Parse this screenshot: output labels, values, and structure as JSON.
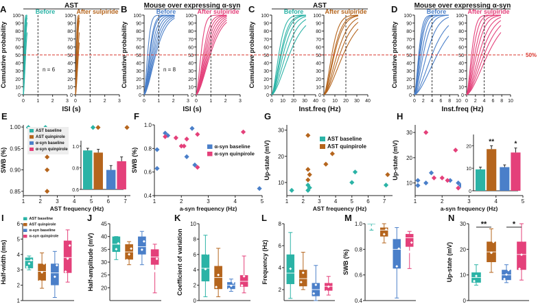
{
  "figure_title": "Multi-panel figure: cumulative probability, scatter and box plots",
  "colors": {
    "ast_base": "#2bb3a6",
    "ast_quin": "#b5651d",
    "syn_base": "#4a7fc9",
    "syn_quin": "#e4407a",
    "ref": "#d9342b"
  },
  "chart_data": [
    {
      "panel": "A",
      "type": "line",
      "group_title": "AST",
      "subtitles": [
        "Before",
        "After sulpiride"
      ],
      "xlabel": "ISI (s)",
      "ylabel": "Cumulative probability",
      "xlim": [
        0,
        3
      ],
      "ylim": [
        0,
        100
      ],
      "xticks": [
        "0",
        "1",
        "2",
        "3"
      ],
      "yticks": [
        "0",
        "10",
        "20",
        "30",
        "40",
        "50",
        "60",
        "70",
        "80",
        "90",
        "100"
      ],
      "n_label": "n = 6",
      "vline": 1,
      "ref_line": 50
    },
    {
      "panel": "B",
      "type": "line",
      "group_title": "Mouse over expressing α-syn",
      "subtitles": [
        "Before",
        "After sulpiride"
      ],
      "xlabel": "ISI (s)",
      "ylabel": "Cumulative probability",
      "xlim": [
        0,
        3
      ],
      "ylim": [
        0,
        100
      ],
      "xticks": [
        "0",
        "1",
        "2",
        "3"
      ],
      "yticks": [
        "0",
        "10",
        "20",
        "30",
        "40",
        "50",
        "60",
        "70",
        "80",
        "90",
        "100"
      ],
      "n_label": "n = 8",
      "vline": 1,
      "ref_line": 50
    },
    {
      "panel": "C",
      "type": "line",
      "group_title": "AST",
      "subtitles": [
        "Before",
        "After sulpiride"
      ],
      "xlabel": "Inst.freq (Hz)",
      "ylabel": "Cumulative probability",
      "xlim": [
        0,
        40
      ],
      "ylim": [
        0,
        100
      ],
      "xticks": [
        "0",
        "10",
        "20",
        "30",
        "40"
      ],
      "yticks": [
        "0",
        "10",
        "20",
        "30",
        "40",
        "50",
        "60",
        "70",
        "80",
        "90",
        "100"
      ],
      "vline": 20,
      "ref_line": 50
    },
    {
      "panel": "D",
      "type": "line",
      "group_title": "Mouse over expressing α-syn",
      "subtitles": [
        "Before",
        "After sulpiride"
      ],
      "xlabel": "Inst.freq (Hz)",
      "ylabel": "Cumulative probability",
      "xlim": [
        0,
        10
      ],
      "ylim": [
        0,
        100
      ],
      "xticks": [
        "0",
        "2",
        "4",
        "6",
        "8",
        "10"
      ],
      "yticks": [
        "0",
        "10",
        "20",
        "30",
        "40",
        "50",
        "60",
        "70",
        "80",
        "90",
        "100"
      ],
      "vline": 4,
      "ref_line": 50,
      "ref_label": "50%"
    },
    {
      "panel": "E",
      "type": "scatter",
      "xlabel": "AST frequency (Hz)",
      "ylabel": "SWB (%)",
      "xlim": [
        1,
        7.3
      ],
      "ylim": [
        0.84,
        1.005
      ],
      "xticks": [
        "1",
        "2",
        "3",
        "4",
        "5",
        "6",
        "7"
      ],
      "yticks": [
        "0.85",
        "0.90",
        "0.95",
        "1.00"
      ],
      "legend": [
        "AST baseline",
        "AST quinpirole",
        "α-syn baseline",
        "α-syn quinpirole"
      ],
      "series": [
        {
          "name": "AST baseline",
          "points": [
            [
              1.3,
              0.999
            ],
            [
              2.3,
              0.999
            ],
            [
              5.1,
              0.999
            ]
          ]
        },
        {
          "name": "AST quinpirole",
          "points": [
            [
              2.3,
              0.97
            ],
            [
              2.4,
              0.93
            ],
            [
              2.4,
              0.9
            ],
            [
              2.4,
              0.85
            ],
            [
              3.7,
              0.966
            ],
            [
              5.4,
              0.999
            ],
            [
              7.1,
              0.999
            ]
          ]
        }
      ],
      "inset": {
        "type": "bar",
        "ylim": [
          0.6,
          1.05
        ],
        "yticks": [
          "0.6",
          "0.8",
          "1.0"
        ],
        "values": [
          0.96,
          0.94,
          0.78,
          0.86
        ],
        "errors": [
          0.02,
          0.03,
          0.04,
          0.04
        ]
      }
    },
    {
      "panel": "F",
      "type": "scatter",
      "xlabel": "a-syn frequency (Hz)",
      "ylabel": "SWB (%)",
      "xlim": [
        1,
        5
      ],
      "ylim": [
        0.4,
        1.0
      ],
      "xticks": [
        "1",
        "2",
        "3",
        "4",
        "5"
      ],
      "yticks": [
        "0.4",
        "0.6",
        "0.8",
        "1.0"
      ],
      "legend": [
        "α-syn baseline",
        "α-syn quinpirole"
      ],
      "series": [
        {
          "name": "α-syn baseline",
          "points": [
            [
              1.1,
              0.63
            ],
            [
              1.1,
              0.79
            ],
            [
              1.4,
              0.93
            ],
            [
              1.5,
              0.91
            ],
            [
              2.4,
              0.97
            ],
            [
              2.5,
              0.66
            ],
            [
              2.2,
              0.73
            ],
            [
              4.9,
              0.46
            ]
          ]
        },
        {
          "name": "α-syn quinpirole",
          "points": [
            [
              1.4,
              0.9
            ],
            [
              1.8,
              0.89
            ],
            [
              2.0,
              0.82
            ],
            [
              2.1,
              0.82
            ],
            [
              2.2,
              0.88
            ],
            [
              2.6,
              0.92
            ],
            [
              2.6,
              0.64
            ],
            [
              4.3,
              0.94
            ]
          ]
        }
      ]
    },
    {
      "panel": "G",
      "type": "scatter",
      "xlabel": "AST frequency (Hz)",
      "ylabel": "Up-state (mV)",
      "xlim": [
        1,
        7.5
      ],
      "ylim": [
        5,
        32
      ],
      "xticks": [
        "1",
        "2",
        "3",
        "4",
        "5",
        "6",
        "7"
      ],
      "yticks": [
        "10",
        "20",
        "30"
      ],
      "legend": [
        "AST baseline",
        "AST quinpirole"
      ],
      "series": [
        {
          "name": "AST baseline",
          "points": [
            [
              1.3,
              7
            ],
            [
              2.3,
              7
            ],
            [
              2.4,
              8
            ],
            [
              2.3,
              9
            ],
            [
              5.0,
              10
            ],
            [
              5.2,
              14
            ],
            [
              7.1,
              9
            ]
          ]
        },
        {
          "name": "AST quinpirole",
          "points": [
            [
              2.3,
              28
            ],
            [
              2.3,
              15
            ],
            [
              2.4,
              13
            ],
            [
              2.3,
              11
            ],
            [
              3.4,
              17
            ],
            [
              3.8,
              21
            ],
            [
              7.2,
              13
            ]
          ]
        }
      ]
    },
    {
      "panel": "H",
      "type": "scatter",
      "xlabel": "a-syn frequency (Hz)",
      "ylabel": "Up-state (mV)",
      "xlim": [
        1,
        5
      ],
      "ylim": [
        5,
        33
      ],
      "xticks": [
        "1",
        "2",
        "3",
        "4",
        "5"
      ],
      "yticks": [
        "10",
        "20",
        "30"
      ],
      "series": [
        {
          "name": "α-syn baseline",
          "points": [
            [
              1.1,
              9
            ],
            [
              1.1,
              11
            ],
            [
              1.4,
              10
            ],
            [
              1.6,
              14
            ],
            [
              2.3,
              11
            ],
            [
              2.6,
              10
            ],
            [
              2.7,
              9
            ],
            [
              2.8,
              7
            ],
            [
              4.8,
              7
            ]
          ]
        },
        {
          "name": "α-syn quinpirole",
          "points": [
            [
              1.4,
              30
            ],
            [
              1.7,
              12
            ],
            [
              2.0,
              12
            ],
            [
              2.2,
              11
            ],
            [
              2.5,
              23
            ],
            [
              2.6,
              8
            ],
            [
              4.3,
              21
            ]
          ]
        }
      ],
      "inset": {
        "type": "bar",
        "ylim": [
          0,
          25
        ],
        "yticks": [
          "0",
          "10",
          "20"
        ],
        "values": [
          9.5,
          18.5,
          10.5,
          17
        ],
        "errors": [
          1,
          1.5,
          1,
          2
        ],
        "sig": [
          "**",
          "*"
        ]
      }
    },
    {
      "panel": "I",
      "type": "box",
      "xlabel": "",
      "ylabel": "Half-width (ms)",
      "ylim": [
        1,
        6
      ],
      "yticks": [
        "1",
        "2",
        "3",
        "4",
        "5",
        "6"
      ],
      "legend": [
        "AST baseline",
        "AST quinpirole",
        "α-syn baseline",
        "α-syn quinpirole"
      ],
      "boxes": [
        {
          "q1": 3.1,
          "med": 3.6,
          "q3": 3.8,
          "lo": 3.0,
          "hi": 3.9
        },
        {
          "q1": 2.3,
          "med": 2.9,
          "q3": 3.4,
          "lo": 1.8,
          "hi": 4.1
        },
        {
          "q1": 2.0,
          "med": 2.8,
          "q3": 3.4,
          "lo": 1.2,
          "hi": 4.2
        },
        {
          "q1": 2.8,
          "med": 3.8,
          "q3": 4.9,
          "lo": 2.2,
          "hi": 5.6
        }
      ]
    },
    {
      "panel": "J",
      "type": "box",
      "ylabel": "Half-amplitude (mV)",
      "ylim": [
        15,
        45
      ],
      "yticks": [
        "20",
        "25",
        "30",
        "35",
        "40",
        "45"
      ],
      "boxes": [
        {
          "q1": 34,
          "med": 37,
          "q3": 40,
          "lo": 31,
          "hi": 40
        },
        {
          "q1": 31,
          "med": 34,
          "q3": 37,
          "lo": 29,
          "hi": 38
        },
        {
          "q1": 33,
          "med": 36,
          "q3": 40,
          "lo": 29,
          "hi": 42
        },
        {
          "q1": 29,
          "med": 32,
          "q3": 35,
          "lo": 18,
          "hi": 37
        }
      ]
    },
    {
      "panel": "K",
      "type": "box",
      "ylabel": "Coefficient of variation",
      "ylim": [
        0,
        10
      ],
      "yticks": [
        "0",
        "2",
        "4",
        "6",
        "8",
        "10"
      ],
      "boxes": [
        {
          "q1": 2.5,
          "med": 4.2,
          "q3": 6.0,
          "lo": 0.5,
          "hi": 8.5
        },
        {
          "q1": 1.5,
          "med": 3.0,
          "q3": 4.5,
          "lo": 0.5,
          "hi": 6.8
        },
        {
          "q1": 1.5,
          "med": 2.0,
          "q3": 2.4,
          "lo": 1.2,
          "hi": 2.8
        },
        {
          "q1": 1.8,
          "med": 2.5,
          "q3": 3.3,
          "lo": 1.0,
          "hi": 5.8
        }
      ]
    },
    {
      "panel": "L",
      "type": "box",
      "ylabel": "Frequency (Hz)",
      "ylim": [
        1,
        8
      ],
      "yticks": [
        "2",
        "4",
        "6",
        "8"
      ],
      "boxes": [
        {
          "q1": 2.5,
          "med": 3.5,
          "q3": 5.2,
          "lo": 1.2,
          "hi": 7.2
        },
        {
          "q1": 2.3,
          "med": 3.0,
          "q3": 3.8,
          "lo": 2.0,
          "hi": 5.4
        },
        {
          "q1": 1.4,
          "med": 2.0,
          "q3": 2.6,
          "lo": 1.0,
          "hi": 4.2
        },
        {
          "q1": 1.9,
          "med": 2.3,
          "q3": 2.6,
          "lo": 1.5,
          "hi": 3.2
        }
      ]
    },
    {
      "panel": "M",
      "type": "box",
      "ylabel": "SWB (%)",
      "ylim": [
        0.4,
        1.0
      ],
      "yticks": [
        "0.4",
        "0.6",
        "0.8",
        "1.0"
      ],
      "boxes": [
        {
          "q1": 1.0,
          "med": 1.0,
          "q3": 1.0,
          "lo": 0.95,
          "hi": 1.0
        },
        {
          "q1": 0.9,
          "med": 0.95,
          "q3": 0.97,
          "lo": 0.85,
          "hi": 1.0
        },
        {
          "q1": 0.65,
          "med": 0.8,
          "q3": 0.88,
          "lo": 0.42,
          "hi": 0.97
        },
        {
          "q1": 0.82,
          "med": 0.89,
          "q3": 0.92,
          "lo": 0.65,
          "hi": 0.94
        }
      ]
    },
    {
      "panel": "N",
      "type": "box",
      "ylabel": "Up-state (mV)",
      "ylim": [
        0,
        30
      ],
      "yticks": [
        "0",
        "10",
        "20",
        "30"
      ],
      "sig": [
        "**",
        "*"
      ],
      "boxes": [
        {
          "q1": 7,
          "med": 9,
          "q3": 11,
          "lo": 6,
          "hi": 14
        },
        {
          "q1": 15,
          "med": 19,
          "q3": 23,
          "lo": 11,
          "hi": 28
        },
        {
          "q1": 8,
          "med": 10,
          "q3": 12,
          "lo": 7,
          "hi": 14
        },
        {
          "q1": 12,
          "med": 18,
          "q3": 23,
          "lo": 8,
          "hi": 30
        }
      ]
    }
  ]
}
